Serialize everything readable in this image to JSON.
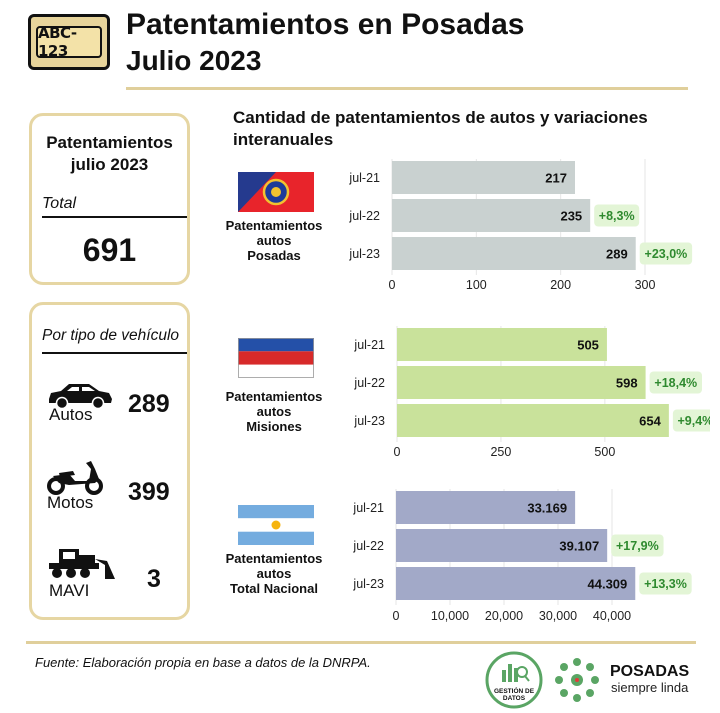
{
  "header": {
    "plate_text": "ABC-123",
    "title": "Patentamientos en Posadas",
    "subtitle": "Julio 2023"
  },
  "summary": {
    "title": "Patentamientos julio 2023",
    "total_label": "Total",
    "total_value": "691"
  },
  "by_type": {
    "title": "Por tipo de vehículo",
    "items": [
      {
        "label": "Autos",
        "value": "289",
        "icon": "car-icon"
      },
      {
        "label": "Motos",
        "value": "399",
        "icon": "motorcycle-icon"
      },
      {
        "label": "MAVI",
        "value": "3",
        "icon": "bulldozer-icon"
      }
    ]
  },
  "chart_title": "Cantidad de patentamientos de autos y variaciones interanuales",
  "regions": [
    {
      "label_lines": [
        "Patentamientos",
        "autos",
        "Posadas"
      ],
      "flag": "posadas-flag-icon"
    },
    {
      "label_lines": [
        "Patentamientos",
        "autos",
        "Misiones"
      ],
      "flag": "misiones-flag-icon"
    },
    {
      "label_lines": [
        "Patentamientos",
        "autos",
        "Total Nacional"
      ],
      "flag": "argentina-flag-icon"
    }
  ],
  "chart_data": [
    {
      "type": "bar",
      "orientation": "horizontal",
      "categories": [
        "jul-21",
        "jul-22",
        "jul-23"
      ],
      "values": [
        217,
        235,
        289
      ],
      "value_labels": [
        "217",
        "235",
        "289"
      ],
      "changes": [
        "",
        "+8,3%",
        "+23,0%"
      ],
      "xlim": [
        0,
        300
      ],
      "ticks": [
        0,
        100,
        200,
        300
      ],
      "tick_labels": [
        "0",
        "100",
        "200",
        "300"
      ],
      "color": "#c9d1d0"
    },
    {
      "type": "bar",
      "orientation": "horizontal",
      "categories": [
        "jul-21",
        "jul-22",
        "jul-23"
      ],
      "values": [
        505,
        598,
        654
      ],
      "value_labels": [
        "505",
        "598",
        "654"
      ],
      "changes": [
        "",
        "+18,4%",
        "+9,4%"
      ],
      "xlim": [
        0,
        700
      ],
      "ticks": [
        0,
        250,
        500
      ],
      "tick_labels": [
        "0",
        "250",
        "500"
      ],
      "color": "#c9e29b"
    },
    {
      "type": "bar",
      "orientation": "horizontal",
      "categories": [
        "jul-21",
        "jul-22",
        "jul-23"
      ],
      "values": [
        33169,
        39107,
        44309
      ],
      "value_labels": [
        "33.169",
        "39.107",
        "44.309"
      ],
      "changes": [
        "",
        "+17,9%",
        "+13,3%"
      ],
      "xlim": [
        0,
        45000
      ],
      "ticks": [
        0,
        10000,
        20000,
        30000,
        40000
      ],
      "tick_labels": [
        "0",
        "10,000",
        "20,000",
        "30,000",
        "40,000"
      ],
      "color": "#a2a9c8"
    }
  ],
  "footer": {
    "source": "Fuente: Elaboración propia en base a datos de la DNRPA.",
    "logo1_text": "GESTIÓN DE DATOS",
    "brand": "POSADAS",
    "brand_sub": "siempre linda"
  },
  "colors": {
    "accent_gold": "#e0cf9b",
    "change_badge_bg": "#e3f5d6",
    "change_text": "#2f8a2f",
    "brand_green": "#5aa564"
  }
}
